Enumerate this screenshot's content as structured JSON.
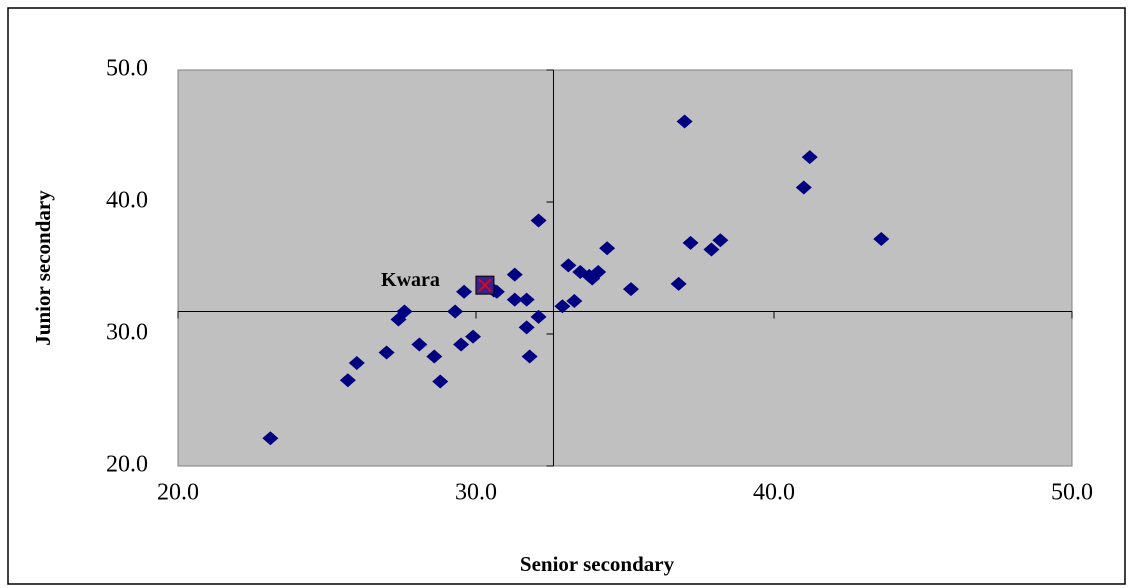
{
  "chart_data": {
    "type": "scatter",
    "xlabel": "Senior secondary",
    "ylabel": "Junior secondary",
    "x": [
      23.1,
      25.7,
      26.0,
      27.0,
      27.4,
      27.6,
      28.1,
      28.6,
      28.8,
      29.3,
      29.5,
      29.6,
      29.9,
      30.6,
      30.7,
      31.3,
      31.3,
      31.7,
      31.7,
      31.8,
      32.1,
      32.1,
      32.9,
      33.1,
      33.3,
      33.5,
      33.8,
      33.9,
      34.1,
      34.4,
      35.2,
      36.8,
      37.0,
      37.2,
      37.9,
      38.2,
      41.0,
      41.2,
      43.6
    ],
    "values": [
      22.1,
      26.5,
      27.8,
      28.6,
      31.1,
      31.7,
      29.2,
      28.3,
      26.4,
      31.7,
      29.2,
      33.2,
      29.8,
      33.3,
      33.2,
      34.5,
      32.6,
      32.6,
      30.5,
      28.3,
      38.6,
      31.3,
      32.1,
      35.2,
      32.5,
      34.7,
      34.4,
      34.2,
      34.7,
      36.5,
      33.4,
      33.8,
      46.1,
      36.9,
      36.4,
      37.1,
      41.1,
      43.4,
      37.2
    ],
    "color": "#000080",
    "highlight": {
      "x": 30.3,
      "y": 33.7,
      "color": "#3c1f8a",
      "cross_color": "#ff0000"
    },
    "annotation": "Kwara",
    "xlim": [
      20,
      50
    ],
    "ylim": [
      20,
      50
    ],
    "xticks": [
      {
        "value": 20,
        "label": "20.0"
      },
      {
        "value": 30,
        "label": "30.0"
      },
      {
        "value": 40,
        "label": "40.0"
      },
      {
        "value": 50,
        "label": "50.0"
      }
    ],
    "yticks": [
      {
        "value": 20,
        "label": "20.0"
      },
      {
        "value": 30,
        "label": "30.0"
      },
      {
        "value": 40,
        "label": "40.0"
      },
      {
        "value": 50,
        "label": "50.0"
      }
    ],
    "xaxis_crosses_at": 31.7,
    "yaxis_crosses_at": 32.6,
    "plot_background": "#c0c0c0"
  }
}
